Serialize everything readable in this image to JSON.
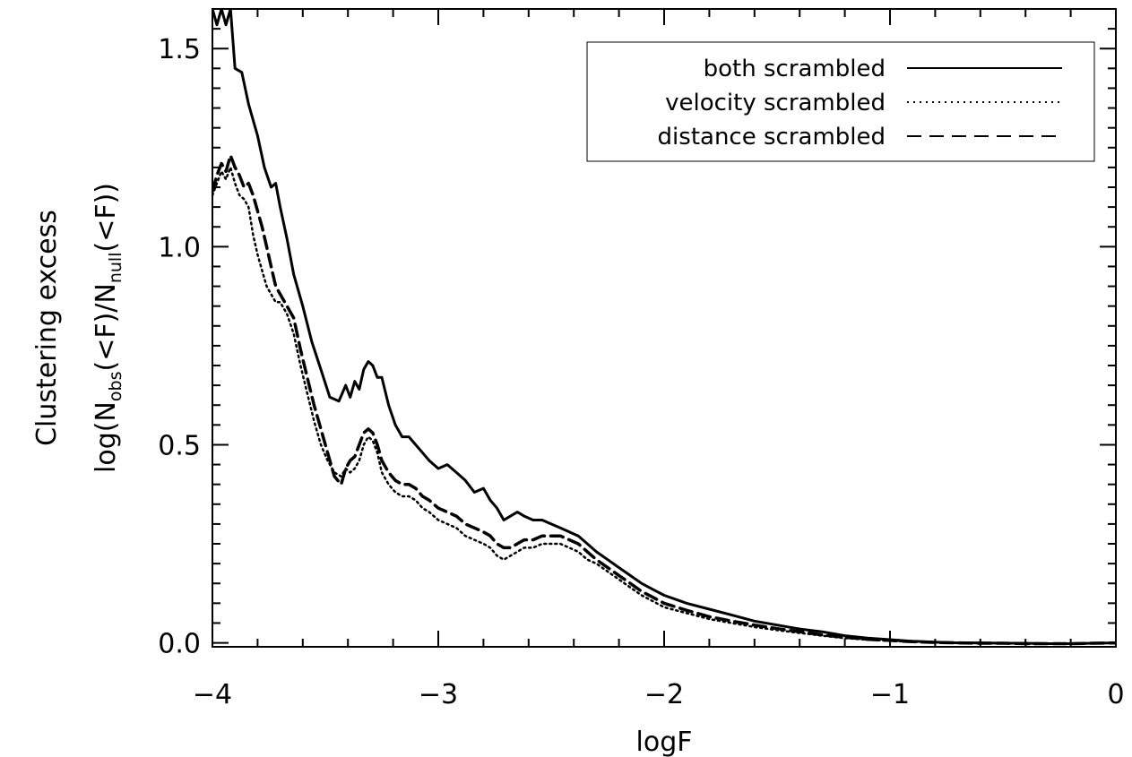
{
  "chart_data": {
    "type": "line",
    "xlabel": "logF",
    "ylabel_line1": "Clustering excess",
    "ylabel_line2": {
      "prefix": "log(N",
      "sub1": "obs",
      "mid": "(<F)/N",
      "sub2": "null",
      "suffix": "(<F))"
    },
    "xlim": [
      -4,
      0
    ],
    "ylim": [
      -0.01,
      1.6
    ],
    "x_ticks": [
      -4,
      -3,
      -2,
      -1,
      0
    ],
    "x_tick_labels": [
      "−4",
      "−3",
      "−2",
      "−1",
      "0"
    ],
    "y_ticks": [
      0.0,
      0.5,
      1.0,
      1.5
    ],
    "y_tick_labels": [
      "0.0",
      "0.5",
      "1.0",
      "1.5"
    ],
    "grid": false,
    "legend_position": "top-right",
    "series": [
      {
        "name": "both scrambled",
        "style": "solid",
        "x": [
          -4.0,
          -3.98,
          -3.96,
          -3.94,
          -3.92,
          -3.9,
          -3.87,
          -3.84,
          -3.8,
          -3.77,
          -3.74,
          -3.72,
          -3.7,
          -3.67,
          -3.64,
          -3.6,
          -3.56,
          -3.52,
          -3.48,
          -3.44,
          -3.41,
          -3.39,
          -3.37,
          -3.35,
          -3.33,
          -3.31,
          -3.29,
          -3.27,
          -3.25,
          -3.22,
          -3.19,
          -3.16,
          -3.13,
          -3.1,
          -3.07,
          -3.04,
          -3.0,
          -2.96,
          -2.92,
          -2.88,
          -2.84,
          -2.8,
          -2.77,
          -2.74,
          -2.71,
          -2.68,
          -2.65,
          -2.62,
          -2.58,
          -2.54,
          -2.5,
          -2.46,
          -2.42,
          -2.38,
          -2.34,
          -2.3,
          -2.25,
          -2.2,
          -2.15,
          -2.1,
          -2.05,
          -2.0,
          -1.9,
          -1.8,
          -1.7,
          -1.6,
          -1.5,
          -1.4,
          -1.3,
          -1.2,
          -1.1,
          -1.0,
          -0.9,
          -0.8,
          -0.7,
          -0.6,
          -0.5,
          -0.4,
          -0.3,
          -0.2,
          -0.1,
          0.0
        ],
        "values": [
          1.6,
          1.56,
          1.6,
          1.56,
          1.6,
          1.45,
          1.44,
          1.36,
          1.28,
          1.2,
          1.15,
          1.16,
          1.1,
          1.02,
          0.93,
          0.85,
          0.76,
          0.69,
          0.62,
          0.61,
          0.65,
          0.62,
          0.66,
          0.64,
          0.69,
          0.71,
          0.7,
          0.67,
          0.67,
          0.6,
          0.55,
          0.52,
          0.52,
          0.5,
          0.48,
          0.46,
          0.44,
          0.45,
          0.43,
          0.41,
          0.38,
          0.39,
          0.36,
          0.34,
          0.31,
          0.32,
          0.33,
          0.32,
          0.31,
          0.31,
          0.3,
          0.29,
          0.28,
          0.27,
          0.25,
          0.23,
          0.21,
          0.19,
          0.17,
          0.15,
          0.135,
          0.12,
          0.1,
          0.085,
          0.07,
          0.055,
          0.045,
          0.035,
          0.028,
          0.018,
          0.012,
          0.008,
          0.004,
          0.002,
          0.0,
          0.0,
          -0.001,
          -0.001,
          -0.002,
          -0.002,
          -0.001,
          0.0
        ]
      },
      {
        "name": "velocity scrambled",
        "style": "dotted",
        "x": [
          -4.0,
          -3.98,
          -3.96,
          -3.94,
          -3.92,
          -3.9,
          -3.88,
          -3.86,
          -3.84,
          -3.82,
          -3.8,
          -3.78,
          -3.76,
          -3.74,
          -3.72,
          -3.7,
          -3.67,
          -3.64,
          -3.61,
          -3.58,
          -3.55,
          -3.52,
          -3.49,
          -3.46,
          -3.43,
          -3.41,
          -3.39,
          -3.37,
          -3.35,
          -3.33,
          -3.31,
          -3.29,
          -3.27,
          -3.25,
          -3.22,
          -3.19,
          -3.16,
          -3.13,
          -3.1,
          -3.07,
          -3.04,
          -3.0,
          -2.96,
          -2.92,
          -2.88,
          -2.84,
          -2.8,
          -2.77,
          -2.74,
          -2.71,
          -2.68,
          -2.65,
          -2.62,
          -2.58,
          -2.54,
          -2.5,
          -2.46,
          -2.42,
          -2.38,
          -2.34,
          -2.3,
          -2.25,
          -2.2,
          -2.15,
          -2.1,
          -2.05,
          -2.0,
          -1.9,
          -1.8,
          -1.7,
          -1.6,
          -1.5,
          -1.4,
          -1.3,
          -1.2,
          -1.1,
          -1.0,
          -0.9,
          -0.8,
          -0.7,
          -0.6,
          -0.5,
          -0.4,
          -0.3,
          -0.2,
          -0.1,
          0.0
        ],
        "values": [
          1.13,
          1.16,
          1.19,
          1.17,
          1.2,
          1.16,
          1.13,
          1.12,
          1.1,
          1.03,
          0.98,
          0.94,
          0.9,
          0.88,
          0.86,
          0.86,
          0.83,
          0.78,
          0.7,
          0.63,
          0.56,
          0.5,
          0.46,
          0.43,
          0.42,
          0.44,
          0.43,
          0.44,
          0.46,
          0.5,
          0.52,
          0.51,
          0.48,
          0.43,
          0.4,
          0.38,
          0.37,
          0.37,
          0.36,
          0.34,
          0.33,
          0.31,
          0.3,
          0.29,
          0.27,
          0.26,
          0.25,
          0.24,
          0.22,
          0.21,
          0.22,
          0.23,
          0.24,
          0.24,
          0.25,
          0.25,
          0.25,
          0.24,
          0.23,
          0.21,
          0.2,
          0.18,
          0.16,
          0.14,
          0.12,
          0.105,
          0.09,
          0.075,
          0.06,
          0.05,
          0.04,
          0.032,
          0.025,
          0.018,
          0.012,
          0.008,
          0.005,
          0.003,
          0.001,
          0.0,
          -0.001,
          -0.001,
          -0.002,
          -0.002,
          -0.002,
          -0.001,
          0.0
        ]
      },
      {
        "name": "distance scrambled",
        "style": "dashed",
        "x": [
          -4.0,
          -3.98,
          -3.96,
          -3.94,
          -3.92,
          -3.9,
          -3.88,
          -3.86,
          -3.84,
          -3.82,
          -3.8,
          -3.78,
          -3.76,
          -3.74,
          -3.72,
          -3.7,
          -3.67,
          -3.64,
          -3.61,
          -3.58,
          -3.55,
          -3.52,
          -3.49,
          -3.46,
          -3.43,
          -3.41,
          -3.39,
          -3.37,
          -3.35,
          -3.33,
          -3.31,
          -3.29,
          -3.27,
          -3.25,
          -3.22,
          -3.19,
          -3.16,
          -3.13,
          -3.1,
          -3.07,
          -3.04,
          -3.0,
          -2.96,
          -2.92,
          -2.88,
          -2.84,
          -2.8,
          -2.77,
          -2.74,
          -2.71,
          -2.68,
          -2.65,
          -2.62,
          -2.58,
          -2.54,
          -2.5,
          -2.46,
          -2.42,
          -2.38,
          -2.34,
          -2.3,
          -2.25,
          -2.2,
          -2.15,
          -2.1,
          -2.05,
          -2.0,
          -1.9,
          -1.8,
          -1.7,
          -1.6,
          -1.5,
          -1.4,
          -1.3,
          -1.2,
          -1.1,
          -1.0,
          -0.9,
          -0.8,
          -0.7,
          -0.6,
          -0.5,
          -0.4,
          -0.3,
          -0.2,
          -0.1,
          0.0
        ],
        "values": [
          1.14,
          1.18,
          1.21,
          1.19,
          1.23,
          1.2,
          1.18,
          1.15,
          1.16,
          1.13,
          1.09,
          1.05,
          1.0,
          0.95,
          0.9,
          0.88,
          0.85,
          0.82,
          0.74,
          0.67,
          0.6,
          0.54,
          0.48,
          0.42,
          0.4,
          0.44,
          0.46,
          0.47,
          0.5,
          0.53,
          0.54,
          0.53,
          0.5,
          0.46,
          0.43,
          0.41,
          0.4,
          0.4,
          0.39,
          0.37,
          0.36,
          0.34,
          0.33,
          0.32,
          0.3,
          0.29,
          0.28,
          0.27,
          0.25,
          0.24,
          0.24,
          0.25,
          0.26,
          0.26,
          0.27,
          0.27,
          0.27,
          0.26,
          0.25,
          0.23,
          0.21,
          0.19,
          0.17,
          0.15,
          0.13,
          0.115,
          0.1,
          0.082,
          0.066,
          0.055,
          0.045,
          0.036,
          0.028,
          0.02,
          0.014,
          0.009,
          0.006,
          0.003,
          0.001,
          0.0,
          -0.001,
          -0.001,
          -0.002,
          -0.002,
          -0.002,
          -0.001,
          0.0
        ]
      }
    ]
  }
}
